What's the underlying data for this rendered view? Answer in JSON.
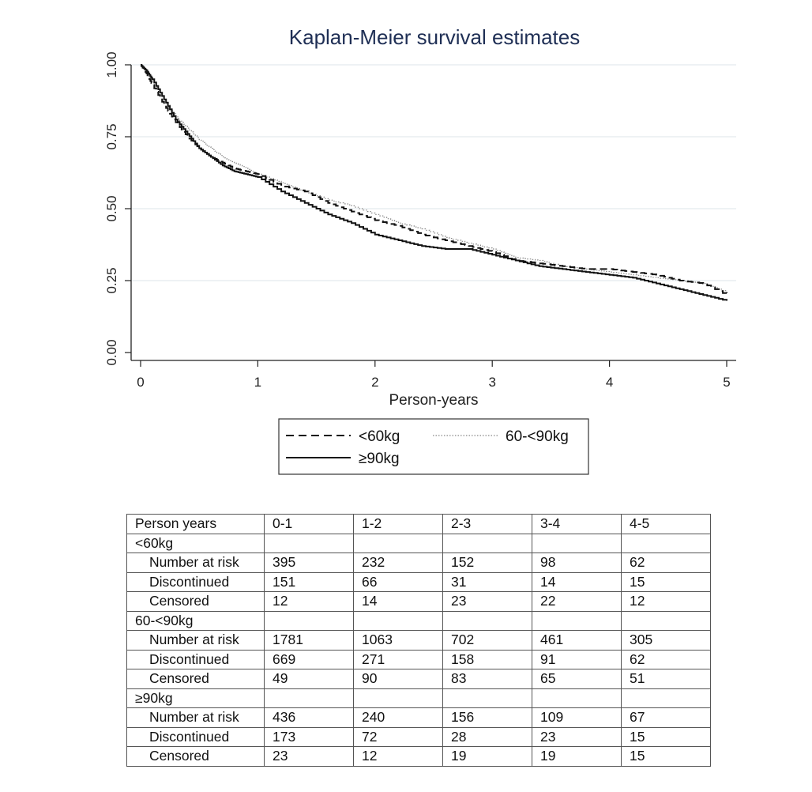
{
  "chart_data": {
    "type": "line",
    "title": "Kaplan-Meier survival estimates",
    "xlabel": "Person-years",
    "ylabel": "",
    "xlim": [
      0,
      5
    ],
    "ylim": [
      0,
      1
    ],
    "xticks": [
      0,
      1,
      2,
      3,
      4,
      5
    ],
    "yticks": [
      "0.00",
      "0.25",
      "0.50",
      "0.75",
      "1.00"
    ],
    "grid": true,
    "legend": "below",
    "series": [
      {
        "name": "<60kg",
        "style": "dashed",
        "color": "#111111",
        "x": [
          0,
          0.05,
          0.1,
          0.2,
          0.3,
          0.4,
          0.5,
          0.6,
          0.7,
          0.8,
          0.9,
          1.0,
          1.2,
          1.4,
          1.6,
          1.8,
          2.0,
          2.2,
          2.4,
          2.6,
          2.8,
          3.0,
          3.2,
          3.4,
          3.6,
          3.8,
          4.0,
          4.2,
          4.4,
          4.6,
          4.8,
          5.0
        ],
        "y": [
          1.0,
          0.97,
          0.93,
          0.86,
          0.8,
          0.75,
          0.71,
          0.68,
          0.66,
          0.64,
          0.63,
          0.62,
          0.58,
          0.56,
          0.52,
          0.49,
          0.46,
          0.44,
          0.41,
          0.39,
          0.37,
          0.35,
          0.32,
          0.31,
          0.3,
          0.29,
          0.29,
          0.28,
          0.27,
          0.25,
          0.24,
          0.2
        ]
      },
      {
        "name": "60-<90kg",
        "style": "dotted",
        "color": "#888888",
        "x": [
          0,
          0.05,
          0.1,
          0.2,
          0.3,
          0.4,
          0.5,
          0.6,
          0.7,
          0.8,
          0.9,
          1.0,
          1.2,
          1.4,
          1.6,
          1.8,
          2.0,
          2.2,
          2.4,
          2.6,
          2.8,
          3.0,
          3.2,
          3.4,
          3.6,
          3.8,
          4.0,
          4.2,
          4.4,
          4.6,
          4.8,
          5.0
        ],
        "y": [
          1.0,
          0.97,
          0.94,
          0.88,
          0.82,
          0.78,
          0.74,
          0.71,
          0.68,
          0.66,
          0.64,
          0.62,
          0.59,
          0.56,
          0.53,
          0.51,
          0.48,
          0.45,
          0.43,
          0.4,
          0.38,
          0.36,
          0.33,
          0.32,
          0.3,
          0.29,
          0.28,
          0.27,
          0.26,
          0.25,
          0.24,
          0.21
        ]
      },
      {
        "name": "≥90kg",
        "style": "solid",
        "color": "#111111",
        "x": [
          0,
          0.05,
          0.1,
          0.2,
          0.3,
          0.4,
          0.5,
          0.6,
          0.7,
          0.8,
          0.9,
          1.0,
          1.2,
          1.4,
          1.6,
          1.8,
          2.0,
          2.2,
          2.4,
          2.6,
          2.8,
          3.0,
          3.2,
          3.4,
          3.6,
          3.8,
          4.0,
          4.2,
          4.4,
          4.6,
          4.8,
          5.0
        ],
        "y": [
          1.0,
          0.98,
          0.95,
          0.88,
          0.81,
          0.76,
          0.71,
          0.68,
          0.65,
          0.63,
          0.62,
          0.61,
          0.56,
          0.52,
          0.48,
          0.45,
          0.41,
          0.39,
          0.37,
          0.36,
          0.36,
          0.34,
          0.32,
          0.3,
          0.29,
          0.28,
          0.27,
          0.26,
          0.24,
          0.22,
          0.2,
          0.18
        ]
      }
    ]
  },
  "legend": {
    "items": [
      "<60kg",
      "60-<90kg",
      "≥90kg"
    ]
  },
  "risk_table": {
    "header": [
      "Person years",
      "0-1",
      "1-2",
      "2-3",
      "3-4",
      "4-5"
    ],
    "groups": [
      {
        "name": "<60kg",
        "rows": [
          {
            "label": "Number at risk",
            "values": [
              "395",
              "232",
              "152",
              "98",
              "62"
            ]
          },
          {
            "label": "Discontinued",
            "values": [
              "151",
              "66",
              "31",
              "14",
              "15"
            ]
          },
          {
            "label": "Censored",
            "values": [
              "12",
              "14",
              "23",
              "22",
              "12"
            ]
          }
        ]
      },
      {
        "name": "60-<90kg",
        "rows": [
          {
            "label": "Number at risk",
            "values": [
              "1781",
              "1063",
              "702",
              "461",
              "305"
            ]
          },
          {
            "label": "Discontinued",
            "values": [
              "669",
              "271",
              "158",
              "91",
              "62"
            ]
          },
          {
            "label": "Censored",
            "values": [
              "49",
              "90",
              "83",
              "65",
              "51"
            ]
          }
        ]
      },
      {
        "name": "≥90kg",
        "rows": [
          {
            "label": "Number at risk",
            "values": [
              "436",
              "240",
              "156",
              "109",
              "67"
            ]
          },
          {
            "label": "Discontinued",
            "values": [
              "173",
              "72",
              "28",
              "23",
              "15"
            ]
          },
          {
            "label": "Censored",
            "values": [
              "23",
              "12",
              "19",
              "19",
              "15"
            ]
          }
        ]
      }
    ]
  }
}
